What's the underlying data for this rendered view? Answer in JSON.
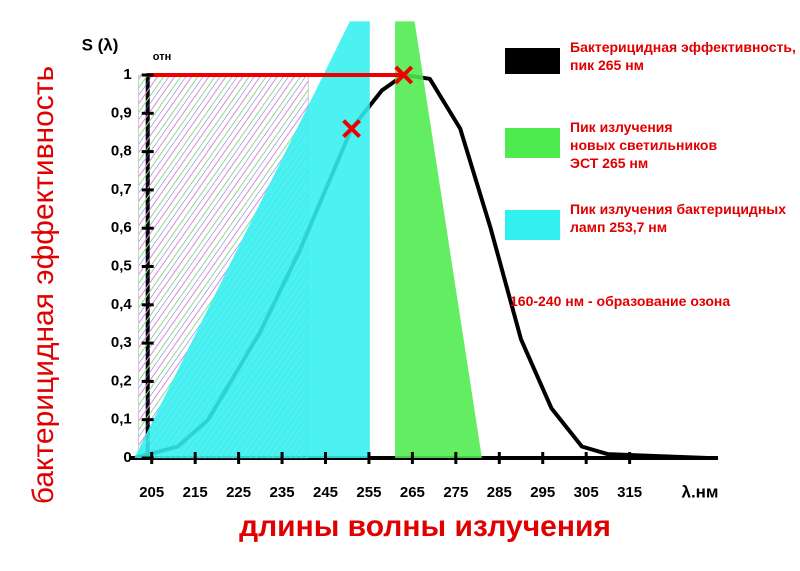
{
  "chart_data": {
    "type": "line",
    "x_label": "длины волны излучения",
    "x_unit": "λ.нм",
    "y_label": "бактерицидная эффективность",
    "y_symbol": "S (λ)",
    "y_unit": "отн",
    "xlim": [
      200,
      333.5
    ],
    "ylim": [
      0,
      1.14
    ],
    "xticks": [
      205,
      215,
      225,
      235,
      245,
      255,
      265,
      275,
      285,
      295,
      305,
      315
    ],
    "yticks": [
      0,
      {
        "value": 0.1,
        "label": "0,1"
      },
      {
        "value": 0.2,
        "label": "0,2"
      },
      {
        "value": 0.3,
        "label": "0,3"
      },
      {
        "value": 0.4,
        "label": "0,4"
      },
      {
        "value": 0.5,
        "label": "0,5"
      },
      {
        "value": 0.6,
        "label": "0,6"
      },
      {
        "value": 0.7,
        "label": "0,7"
      },
      {
        "value": 0.8,
        "label": "0,8"
      },
      {
        "value": 0.9,
        "label": "0,9"
      },
      1
    ],
    "series": [
      {
        "name": "160-240 нм - образование озона",
        "kind": "hatch",
        "color": "#e00000",
        "x": [
          202,
          241
        ],
        "values": [
          1,
          1
        ]
      },
      {
        "name": "Бактерицидная эффективность,\nпик  265 нм",
        "kind": "line",
        "color": "#000000",
        "x": [
          201,
          211,
          218,
          230,
          239,
          251,
          258,
          263,
          269,
          276,
          283,
          290,
          297,
          304,
          310,
          333
        ],
        "values": [
          0,
          0.03,
          0.1,
          0.33,
          0.54,
          0.86,
          0.96,
          1,
          0.99,
          0.86,
          0.6,
          0.31,
          0.13,
          0.03,
          0.01,
          0
        ]
      },
      {
        "name": "Пик излучения бактерицидных\nламп 253,7 нм",
        "kind": "area",
        "color": "#33f0f0",
        "x": [
          201,
          250.6,
          255.2,
          255.2
        ],
        "values": [
          0,
          1.14,
          1.14,
          0
        ]
      },
      {
        "name": "Пик излучения\nновых светильников\nЭСТ 265 нм",
        "kind": "area",
        "color": "#4deb4d",
        "x": [
          261,
          265.5,
          281,
          261
        ],
        "values": [
          1.14,
          1.14,
          0,
          0
        ]
      },
      {
        "kind": "line",
        "color": "#ee0000",
        "x": [
          204,
          263
        ],
        "values": [
          1,
          1
        ]
      },
      {
        "kind": "marker",
        "color": "#ee0000",
        "x": [
          251,
          263
        ],
        "values": [
          0.86,
          1
        ]
      }
    ]
  }
}
